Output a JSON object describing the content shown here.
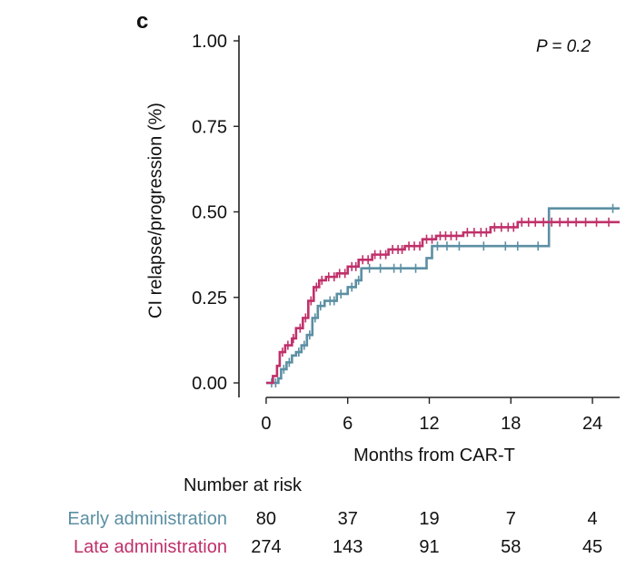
{
  "figure": {
    "panel_letter": "c",
    "p_value": "P = 0.2",
    "number_at_risk_title": "Number at risk"
  },
  "colors": {
    "early": "#5b8fa3",
    "late": "#c0306a",
    "axis": "#222222"
  },
  "chart_data": {
    "type": "line",
    "subtype": "cumulative-incidence-step",
    "ylabel": "CI relapse/progression (%)",
    "xlabel": "Months from CAR-T",
    "xlim": [
      -2,
      26
    ],
    "ylim": [
      0,
      1
    ],
    "xticks": [
      0,
      6,
      12,
      18,
      24
    ],
    "xtick_labels": [
      "0",
      "6",
      "12",
      "18",
      "24"
    ],
    "yticks": [
      0,
      0.25,
      0.5,
      0.75,
      1.0
    ],
    "ytick_labels": [
      "0.00",
      "0.25",
      "0.50",
      "0.75",
      "1.00"
    ],
    "legend": "risk-table-labels",
    "series": [
      {
        "name": "Early administration",
        "color": "#5b8fa3",
        "steps": [
          [
            0,
            0
          ],
          [
            0.9,
            0.013
          ],
          [
            1.1,
            0.04
          ],
          [
            1.5,
            0.06
          ],
          [
            1.9,
            0.08
          ],
          [
            2.2,
            0.09
          ],
          [
            2.6,
            0.11
          ],
          [
            3.0,
            0.14
          ],
          [
            3.4,
            0.19
          ],
          [
            3.8,
            0.225
          ],
          [
            4.3,
            0.24
          ],
          [
            5.2,
            0.26
          ],
          [
            6.0,
            0.28
          ],
          [
            6.6,
            0.3
          ],
          [
            7.0,
            0.335
          ],
          [
            11.8,
            0.365
          ],
          [
            12.2,
            0.4
          ],
          [
            20.8,
            0.51
          ],
          [
            26,
            0.51
          ]
        ],
        "censors": [
          0.4,
          0.7,
          1.3,
          1.7,
          2.4,
          2.8,
          3.2,
          3.6,
          4.0,
          4.7,
          5.0,
          5.5,
          6.3,
          6.8,
          7.6,
          8.4,
          9.4,
          9.9,
          11.0,
          12.6,
          13.3,
          14.2,
          16.0,
          17.6,
          18.5,
          20.0,
          25.5
        ]
      },
      {
        "name": "Late administration",
        "color": "#c0306a",
        "steps": [
          [
            0,
            0
          ],
          [
            0.5,
            0.02
          ],
          [
            0.8,
            0.05
          ],
          [
            1.0,
            0.09
          ],
          [
            1.4,
            0.11
          ],
          [
            1.9,
            0.13
          ],
          [
            2.2,
            0.16
          ],
          [
            2.7,
            0.19
          ],
          [
            3.1,
            0.24
          ],
          [
            3.5,
            0.28
          ],
          [
            3.9,
            0.3
          ],
          [
            4.4,
            0.31
          ],
          [
            5.2,
            0.32
          ],
          [
            6.0,
            0.34
          ],
          [
            6.8,
            0.36
          ],
          [
            7.8,
            0.375
          ],
          [
            9.0,
            0.39
          ],
          [
            10.2,
            0.4
          ],
          [
            11.5,
            0.42
          ],
          [
            12.5,
            0.43
          ],
          [
            14.5,
            0.44
          ],
          [
            16.5,
            0.455
          ],
          [
            18.5,
            0.47
          ],
          [
            26,
            0.47
          ]
        ],
        "censors": [
          1.2,
          1.6,
          2.0,
          2.5,
          2.9,
          3.3,
          3.7,
          4.1,
          4.6,
          5.0,
          5.4,
          5.8,
          6.3,
          6.6,
          7.1,
          7.5,
          8.0,
          8.4,
          8.8,
          9.3,
          9.7,
          10.0,
          10.5,
          10.9,
          11.3,
          11.8,
          12.2,
          12.8,
          13.2,
          13.6,
          14.0,
          14.8,
          15.3,
          15.8,
          16.2,
          16.8,
          17.3,
          17.8,
          18.2,
          18.8,
          19.3,
          19.8,
          20.4,
          21.0,
          21.6,
          22.2,
          22.8,
          23.5,
          24.3,
          25.2
        ]
      }
    ],
    "risk_table": {
      "title": "Number at risk",
      "times": [
        0,
        6,
        12,
        18,
        24
      ],
      "rows": [
        {
          "label": "Early administration",
          "color": "#5b8fa3",
          "values": [
            "80",
            "37",
            "19",
            "7",
            "4"
          ]
        },
        {
          "label": "Late administration",
          "color": "#c0306a",
          "values": [
            "274",
            "143",
            "91",
            "58",
            "45"
          ]
        }
      ]
    }
  }
}
